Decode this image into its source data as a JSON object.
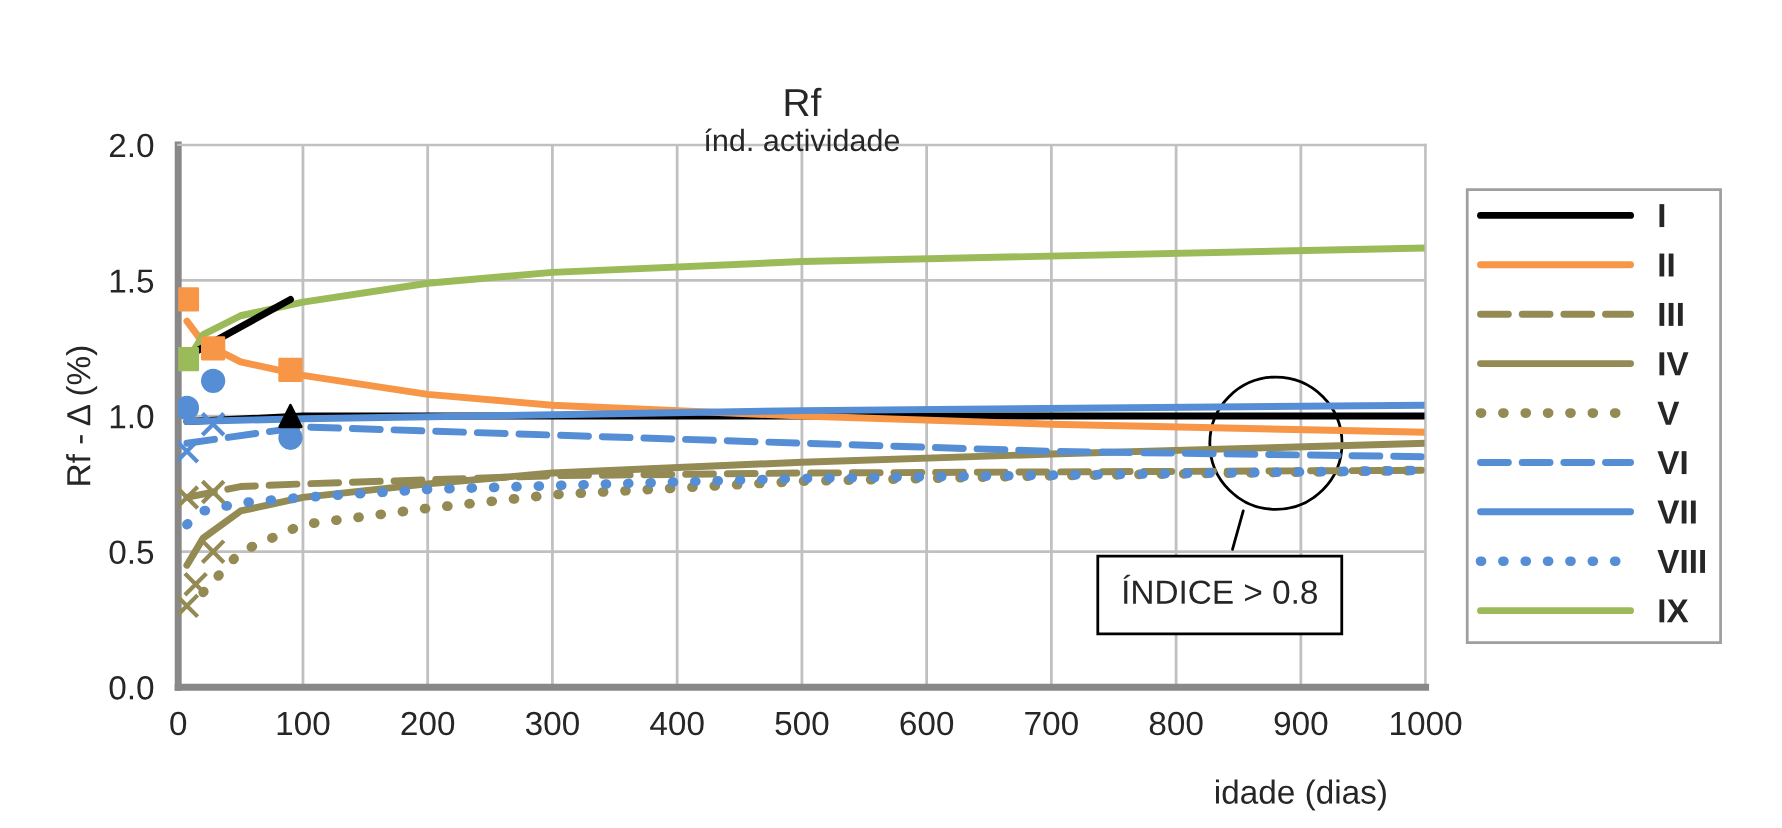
{
  "chart_data": {
    "type": "line",
    "title": "Rf",
    "subtitle": "índ. actividade",
    "xlabel": "idade (dias)",
    "ylabel": "Rf - Δ (%)",
    "xlim": [
      0,
      1000
    ],
    "xticks": [
      0,
      100,
      200,
      300,
      400,
      500,
      600,
      700,
      800,
      900,
      1000
    ],
    "ylim": [
      0,
      2
    ],
    "yticks": [
      {
        "value": 0,
        "label": "0.0"
      },
      {
        "value": 0.5,
        "label": "0.5"
      },
      {
        "value": 1,
        "label": "1.0"
      },
      {
        "value": 1.5,
        "label": "1.5"
      },
      {
        "value": 2,
        "label": "2.0"
      }
    ],
    "grid": true,
    "legend": "right",
    "annotations": [
      "ÍNDICE > 0.8"
    ],
    "series": [
      {
        "name": "I",
        "color": "#000000",
        "line_style": "solid",
        "x": [
          7,
          100,
          300,
          500,
          700,
          1000
        ],
        "values": [
          0.98,
          1.0,
          1.0,
          1.0,
          1.0,
          1.0
        ]
      },
      {
        "name": "II",
        "color": "#f79646",
        "line_style": "solid",
        "x": [
          7,
          20,
          50,
          100,
          200,
          300,
          500,
          700,
          1000
        ],
        "values": [
          1.35,
          1.27,
          1.2,
          1.15,
          1.08,
          1.04,
          1.0,
          0.97,
          0.94
        ]
      },
      {
        "name": "III",
        "color": "#948a54",
        "line_style": "dashed",
        "x": [
          7,
          50,
          100,
          300,
          500,
          1000
        ],
        "values": [
          0.7,
          0.74,
          0.75,
          0.78,
          0.79,
          0.8
        ]
      },
      {
        "name": "IV",
        "color": "#948a54",
        "line_style": "solid",
        "x": [
          7,
          20,
          50,
          100,
          200,
          300,
          500,
          700,
          1000
        ],
        "values": [
          0.45,
          0.55,
          0.65,
          0.7,
          0.75,
          0.79,
          0.83,
          0.86,
          0.9
        ]
      },
      {
        "name": "V",
        "color": "#948a54",
        "line_style": "dotted",
        "x": [
          20,
          50,
          100,
          200,
          300,
          500,
          700,
          1000
        ],
        "values": [
          0.35,
          0.5,
          0.6,
          0.66,
          0.71,
          0.76,
          0.78,
          0.8
        ]
      },
      {
        "name": "VI",
        "color": "#558ed5",
        "line_style": "dashed",
        "x": [
          7,
          100,
          300,
          500,
          700,
          1000
        ],
        "values": [
          0.9,
          0.96,
          0.93,
          0.9,
          0.87,
          0.85
        ]
      },
      {
        "name": "VII",
        "color": "#558ed5",
        "line_style": "solid",
        "x": [
          7,
          100,
          500,
          1000
        ],
        "values": [
          0.98,
          0.99,
          1.02,
          1.04
        ]
      },
      {
        "name": "VIII",
        "color": "#558ed5",
        "line_style": "dotted",
        "x": [
          7,
          20,
          50,
          100,
          200,
          500,
          1000
        ],
        "values": [
          0.6,
          0.65,
          0.68,
          0.7,
          0.73,
          0.77,
          0.8
        ]
      },
      {
        "name": "IX",
        "color": "#9bbb59",
        "line_style": "solid",
        "x": [
          7,
          20,
          50,
          100,
          200,
          300,
          500,
          1000
        ],
        "values": [
          1.2,
          1.3,
          1.37,
          1.42,
          1.49,
          1.53,
          1.57,
          1.62
        ]
      },
      {
        "type": "line",
        "color": "#000000",
        "line_style": "solid",
        "x": [
          7,
          90
        ],
        "values": [
          1.22,
          1.43
        ]
      },
      {
        "type": "scatter",
        "color": "#f79646",
        "marker": "square",
        "x": [
          7,
          28,
          90
        ],
        "values": [
          1.43,
          1.25,
          1.17
        ]
      },
      {
        "type": "scatter",
        "color": "#558ed5",
        "marker": "circle",
        "x": [
          7,
          28,
          90
        ],
        "values": [
          1.03,
          1.13,
          0.92
        ]
      },
      {
        "type": "scatter",
        "color": "#9bbb59",
        "marker": "square",
        "x": [
          7
        ],
        "values": [
          1.21
        ]
      },
      {
        "type": "scatter",
        "color": "#000000",
        "marker": "triangle",
        "x": [
          90
        ],
        "values": [
          1.0
        ]
      },
      {
        "type": "scatter",
        "color": "#948a54",
        "marker": "cross",
        "x": [
          7,
          14,
          28,
          7,
          28
        ],
        "values": [
          0.3,
          0.38,
          0.5,
          0.7,
          0.72
        ]
      },
      {
        "type": "scatter",
        "color": "#558ed5",
        "marker": "cross",
        "x": [
          7,
          28
        ],
        "values": [
          0.87,
          0.97
        ]
      }
    ]
  }
}
